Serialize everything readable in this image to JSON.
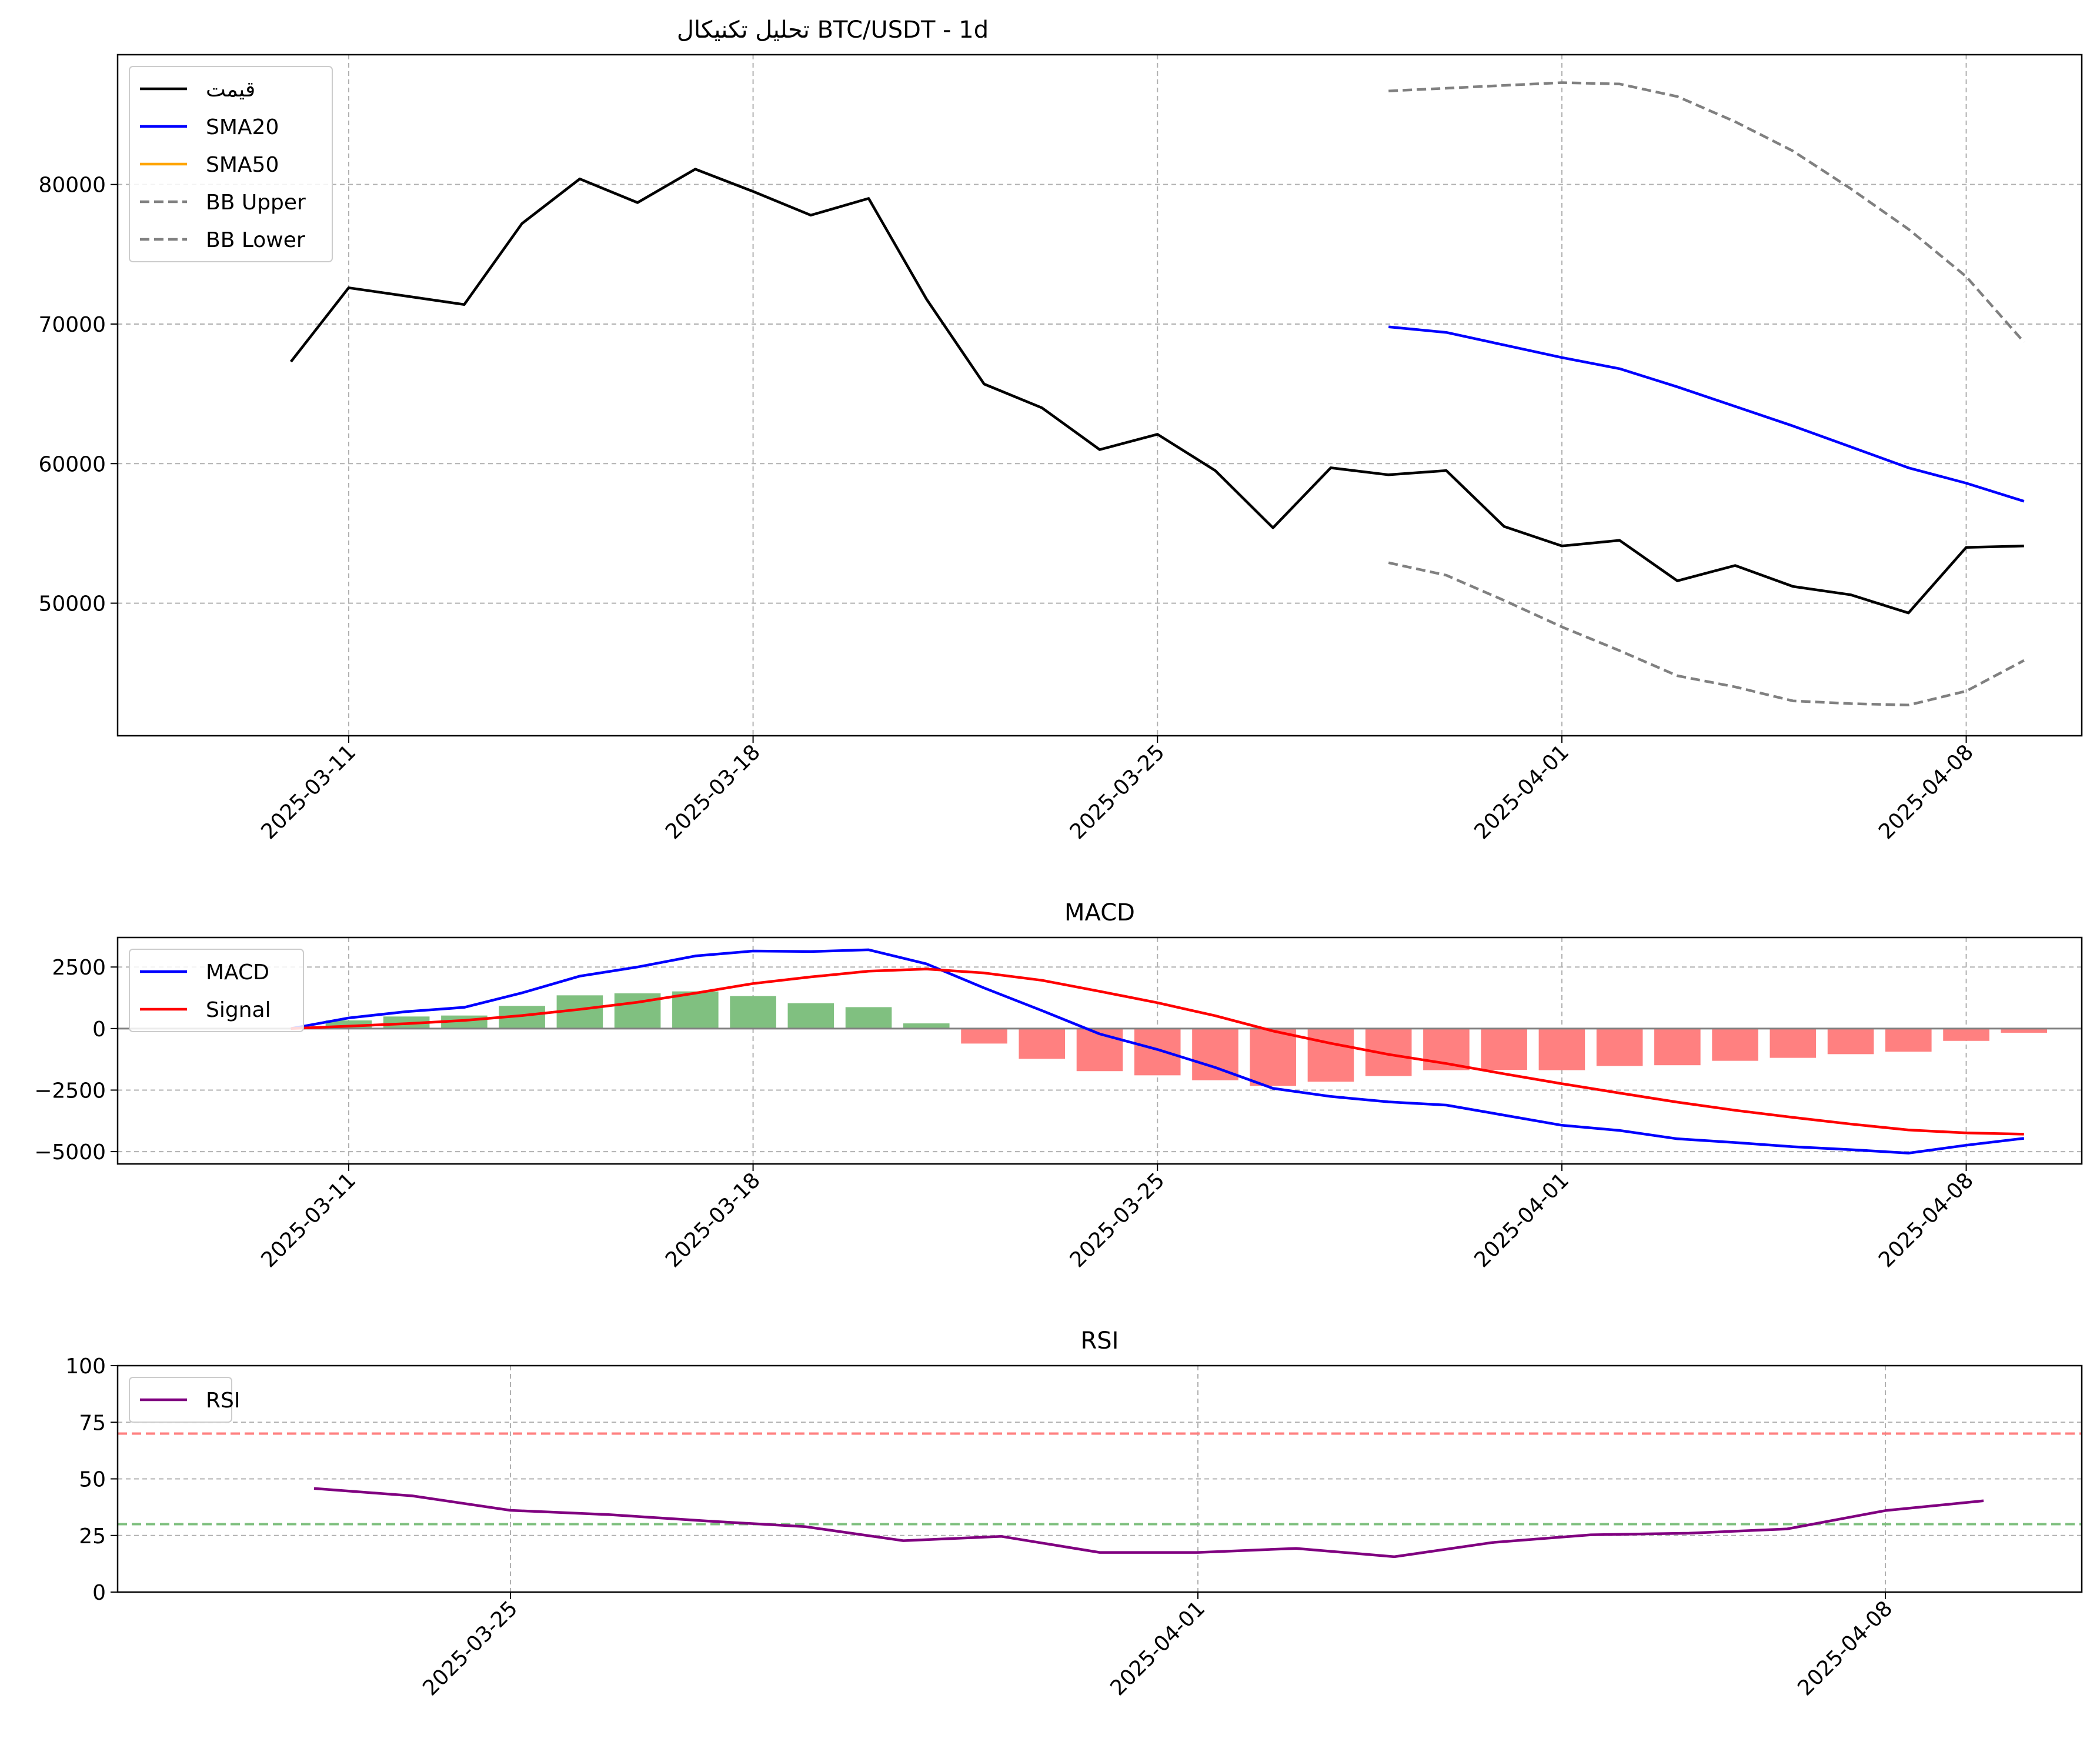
{
  "colors": {
    "price": "#000000",
    "sma20": "#0000ff",
    "sma50": "#ffa500",
    "bb": "#808080",
    "macd": "#0000ff",
    "signal": "#ff0000",
    "hist_pos": "#80c080",
    "hist_neg": "#ff8080",
    "rsi": "#800080",
    "overbought": "#ff8080",
    "oversold": "#80c080",
    "grid": "#b0b0b0"
  },
  "chart_data": [
    {
      "type": "line",
      "title": "تحلیل تکنیکال BTC/USDT - 1d",
      "xlabel": "",
      "ylabel": "",
      "x_start": "2025-03-10",
      "x_ticks": [
        "2025-03-11",
        "2025-03-18",
        "2025-03-25",
        "2025-04-01",
        "2025-04-08"
      ],
      "y_ticks": [
        50000,
        60000,
        70000,
        80000
      ],
      "xlim": [
        "2025-03-07",
        "2025-04-10"
      ],
      "ylim": [
        40500,
        89300
      ],
      "grid": true,
      "legend": "top-left",
      "series": [
        {
          "name": "قیمت",
          "color_key": "price",
          "dash": "solid",
          "offset": 0,
          "values": [
            67300,
            72600,
            72000,
            71400,
            77200,
            80400,
            78700,
            81100,
            79500,
            77800,
            79000,
            71800,
            65700,
            64000,
            61000,
            62100,
            59500,
            55400,
            59700,
            59200,
            59500,
            55500,
            54100,
            54500,
            51600,
            52700,
            51200,
            50600,
            49300,
            54000,
            54100
          ]
        },
        {
          "name": "SMA20",
          "color_key": "sma20",
          "dash": "solid",
          "offset": 19,
          "values": [
            69800,
            69400,
            68500,
            67600,
            66800,
            65500,
            64100,
            62700,
            61200,
            59700,
            58600,
            57300
          ]
        },
        {
          "name": "SMA50",
          "color_key": "sma50",
          "dash": "solid",
          "offset": 0,
          "values": []
        },
        {
          "name": "BB Upper",
          "color_key": "bb",
          "dash": "dashed",
          "offset": 19,
          "values": [
            86700,
            86900,
            87100,
            87300,
            87200,
            86300,
            84500,
            82400,
            79700,
            76800,
            73400,
            68700
          ]
        },
        {
          "name": "BB Lower",
          "color_key": "bb",
          "dash": "dashed",
          "offset": 19,
          "values": [
            52900,
            52000,
            50200,
            48300,
            46600,
            44800,
            44000,
            43000,
            42800,
            42700,
            43700,
            45900
          ]
        }
      ]
    },
    {
      "type": "line",
      "title": "MACD",
      "xlabel": "",
      "ylabel": "",
      "x_start": "2025-03-10",
      "x_ticks": [
        "2025-03-11",
        "2025-03-18",
        "2025-03-25",
        "2025-04-01",
        "2025-04-08"
      ],
      "y_ticks": [
        -5000,
        -2500,
        0,
        2500
      ],
      "xlim": [
        "2025-03-07",
        "2025-04-10"
      ],
      "ylim": [
        -5500,
        3700
      ],
      "grid": true,
      "legend": "top-left",
      "series": [
        {
          "name": "MACD",
          "color_key": "macd",
          "offset": 0,
          "values": [
            0,
            430,
            690,
            860,
            1450,
            2130,
            2500,
            2950,
            3150,
            3130,
            3200,
            2630,
            1650,
            730,
            -220,
            -850,
            -1580,
            -2430,
            -2760,
            -2980,
            -3110,
            -3520,
            -3930,
            -4140,
            -4480,
            -4630,
            -4800,
            -4920,
            -5060,
            -4740,
            -4460
          ]
        },
        {
          "name": "Signal",
          "color_key": "signal",
          "offset": 0,
          "values": [
            0,
            100,
            200,
            330,
            530,
            780,
            1070,
            1440,
            1830,
            2100,
            2330,
            2420,
            2260,
            1960,
            1510,
            1050,
            520,
            -100,
            -600,
            -1050,
            -1420,
            -1840,
            -2240,
            -2620,
            -2990,
            -3320,
            -3610,
            -3880,
            -4120,
            -4240,
            -4290
          ]
        },
        {
          "name": "Histogram",
          "type": "bar",
          "offset": 0,
          "values": [
            0,
            330,
            490,
            530,
            920,
            1350,
            1430,
            1510,
            1320,
            1030,
            870,
            210,
            -610,
            -1230,
            -1730,
            -1900,
            -2100,
            -2330,
            -2160,
            -1930,
            -1690,
            -1680,
            -1690,
            -1520,
            -1490,
            -1310,
            -1190,
            -1040,
            -940,
            -500,
            -170
          ]
        }
      ]
    },
    {
      "type": "line",
      "title": "RSI",
      "xlabel": "",
      "ylabel": "",
      "x_start": "2025-03-23",
      "x_ticks": [
        "2025-03-25",
        "2025-04-01",
        "2025-04-08"
      ],
      "y_ticks": [
        0,
        25,
        50,
        75,
        100
      ],
      "xlim": [
        "2025-03-21",
        "2025-04-10"
      ],
      "ylim": [
        0,
        100
      ],
      "grid": true,
      "legend": "top-left",
      "hlines": [
        {
          "value": 70,
          "color_key": "overbought"
        },
        {
          "value": 30,
          "color_key": "oversold"
        }
      ],
      "series": [
        {
          "name": "RSI",
          "color_key": "rsi",
          "offset": 0,
          "values": [
            45.8,
            42.5,
            36.1,
            34.2,
            31.4,
            28.9,
            22.7,
            24.6,
            17.5,
            17.5,
            19.3,
            15.6,
            21.9,
            25.3,
            26.0,
            27.9,
            36.0,
            40.3
          ]
        }
      ]
    }
  ]
}
